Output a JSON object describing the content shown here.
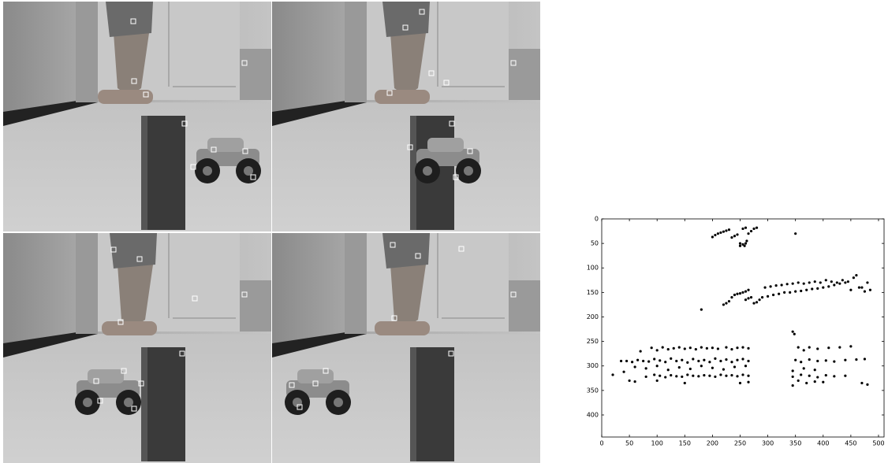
{
  "chart_data": {
    "type": "scatter",
    "x": [
      200,
      205,
      210,
      215,
      220,
      225,
      230,
      235,
      240,
      245,
      250,
      255,
      260,
      262,
      250,
      258,
      265,
      270,
      275,
      280,
      255,
      260,
      350,
      220,
      225,
      230,
      235,
      240,
      245,
      250,
      255,
      260,
      265,
      270,
      275,
      280,
      285,
      290,
      295,
      300,
      305,
      310,
      315,
      320,
      325,
      330,
      335,
      340,
      345,
      350,
      355,
      360,
      365,
      370,
      375,
      380,
      385,
      390,
      395,
      400,
      405,
      410,
      415,
      420,
      425,
      430,
      435,
      440,
      445,
      450,
      455,
      460,
      465,
      470,
      475,
      480,
      485,
      180,
      260,
      265,
      70,
      90,
      100,
      110,
      120,
      130,
      140,
      150,
      160,
      170,
      180,
      190,
      200,
      210,
      225,
      235,
      245,
      255,
      265,
      355,
      365,
      375,
      390,
      410,
      430,
      450,
      35,
      45,
      55,
      65,
      75,
      85,
      95,
      105,
      115,
      125,
      135,
      145,
      155,
      165,
      175,
      185,
      195,
      205,
      215,
      225,
      235,
      245,
      255,
      265,
      350,
      360,
      375,
      390,
      405,
      420,
      440,
      460,
      475,
      60,
      80,
      100,
      120,
      140,
      160,
      180,
      200,
      220,
      240,
      260,
      345,
      365,
      385,
      20,
      40,
      80,
      95,
      105,
      115,
      125,
      135,
      145,
      155,
      165,
      175,
      185,
      195,
      205,
      215,
      225,
      235,
      245,
      255,
      265,
      345,
      360,
      375,
      390,
      405,
      420,
      440,
      50,
      60,
      100,
      150,
      250,
      265,
      345,
      355,
      370,
      385,
      400,
      470,
      480,
      345,
      348
    ],
    "values": [
      37,
      33,
      30,
      28,
      26,
      24,
      22,
      38,
      35,
      32,
      50,
      52,
      50,
      45,
      55,
      55,
      30,
      25,
      20,
      18,
      20,
      18,
      30,
      175,
      172,
      168,
      160,
      155,
      153,
      152,
      150,
      148,
      145,
      160,
      172,
      170,
      165,
      160,
      140,
      158,
      138,
      155,
      136,
      153,
      135,
      150,
      133,
      150,
      132,
      148,
      130,
      147,
      132,
      145,
      130,
      143,
      128,
      142,
      130,
      140,
      125,
      138,
      128,
      135,
      130,
      132,
      125,
      130,
      128,
      145,
      120,
      115,
      140,
      140,
      148,
      130,
      145,
      185,
      165,
      162,
      270,
      263,
      268,
      262,
      266,
      264,
      262,
      265,
      263,
      266,
      262,
      264,
      263,
      265,
      262,
      266,
      263,
      262,
      264,
      262,
      268,
      262,
      265,
      263,
      262,
      260,
      290,
      290,
      292,
      288,
      290,
      291,
      286,
      289,
      292,
      285,
      290,
      288,
      293,
      286,
      290,
      288,
      292,
      285,
      290,
      287,
      292,
      288,
      286,
      290,
      288,
      292,
      287,
      290,
      289,
      291,
      288,
      287,
      286,
      302,
      305,
      300,
      308,
      303,
      306,
      300,
      304,
      307,
      302,
      300,
      310,
      305,
      308,
      318,
      312,
      322,
      318,
      320,
      323,
      319,
      321,
      322,
      318,
      320,
      321,
      319,
      320,
      322,
      318,
      320,
      319,
      321,
      318,
      320,
      322,
      318,
      320,
      323,
      319,
      321,
      320,
      330,
      332,
      330,
      335,
      335,
      333,
      340,
      330,
      335,
      332,
      333,
      335,
      338,
      230,
      235
    ],
    "color": "#000000",
    "xlim": [
      0,
      510
    ],
    "ylim": [
      0,
      445
    ],
    "y_inverted": true,
    "xticks": [
      0,
      50,
      100,
      150,
      200,
      250,
      300,
      350,
      400,
      450,
      500
    ],
    "yticks": [
      0,
      50,
      100,
      150,
      200,
      250,
      300,
      350,
      400
    ]
  }
}
